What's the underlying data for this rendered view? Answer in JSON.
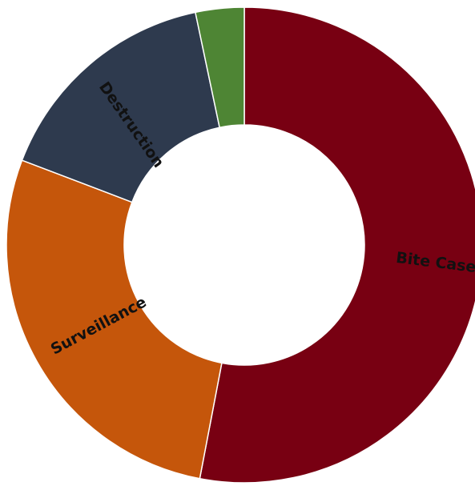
{
  "chart_data": {
    "type": "pie",
    "variant": "donut",
    "title": "",
    "legend": "none",
    "slices": [
      {
        "label": "Bite Cases",
        "value": 53.0,
        "color": "#780012"
      },
      {
        "label": "Surveillance",
        "value": 27.8,
        "color": "#c5560b"
      },
      {
        "label": "Destruction",
        "value": 15.9,
        "color": "#2e3a4e"
      },
      {
        "label": "",
        "value": 3.3,
        "color": "#4e8534"
      }
    ]
  }
}
